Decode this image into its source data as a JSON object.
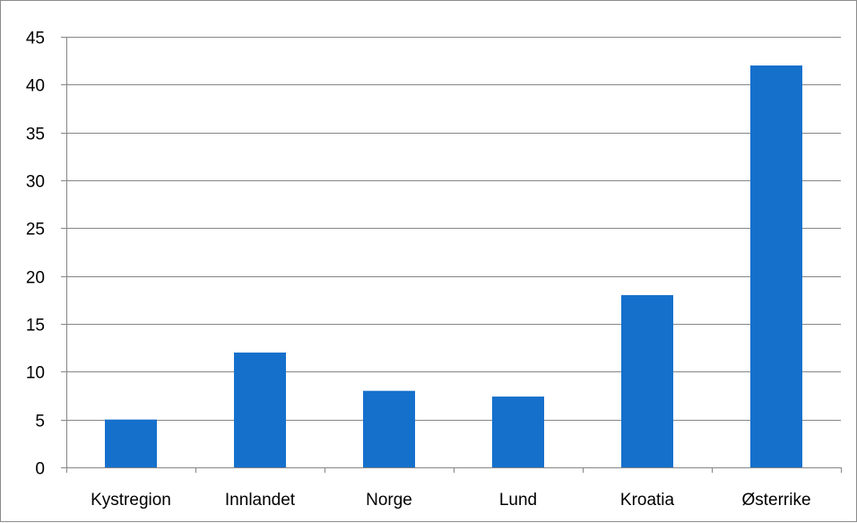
{
  "chart_data": {
    "type": "bar",
    "title": "",
    "xlabel": "",
    "ylabel": "",
    "categories": [
      "Kystregion",
      "Innlandet",
      "Norge",
      "Lund",
      "Kroatia",
      "Østerrike"
    ],
    "values": [
      5,
      12,
      8,
      7.4,
      18,
      42
    ],
    "ylim": [
      0,
      45
    ],
    "yticks": [
      "0",
      "5",
      "10",
      "15",
      "20",
      "25",
      "30",
      "35",
      "40",
      "45"
    ],
    "grid": true,
    "legend": "none",
    "colors": {
      "bar": "#1570CC",
      "grid": "#868686",
      "axis": "#868686",
      "text": "#000000"
    }
  }
}
